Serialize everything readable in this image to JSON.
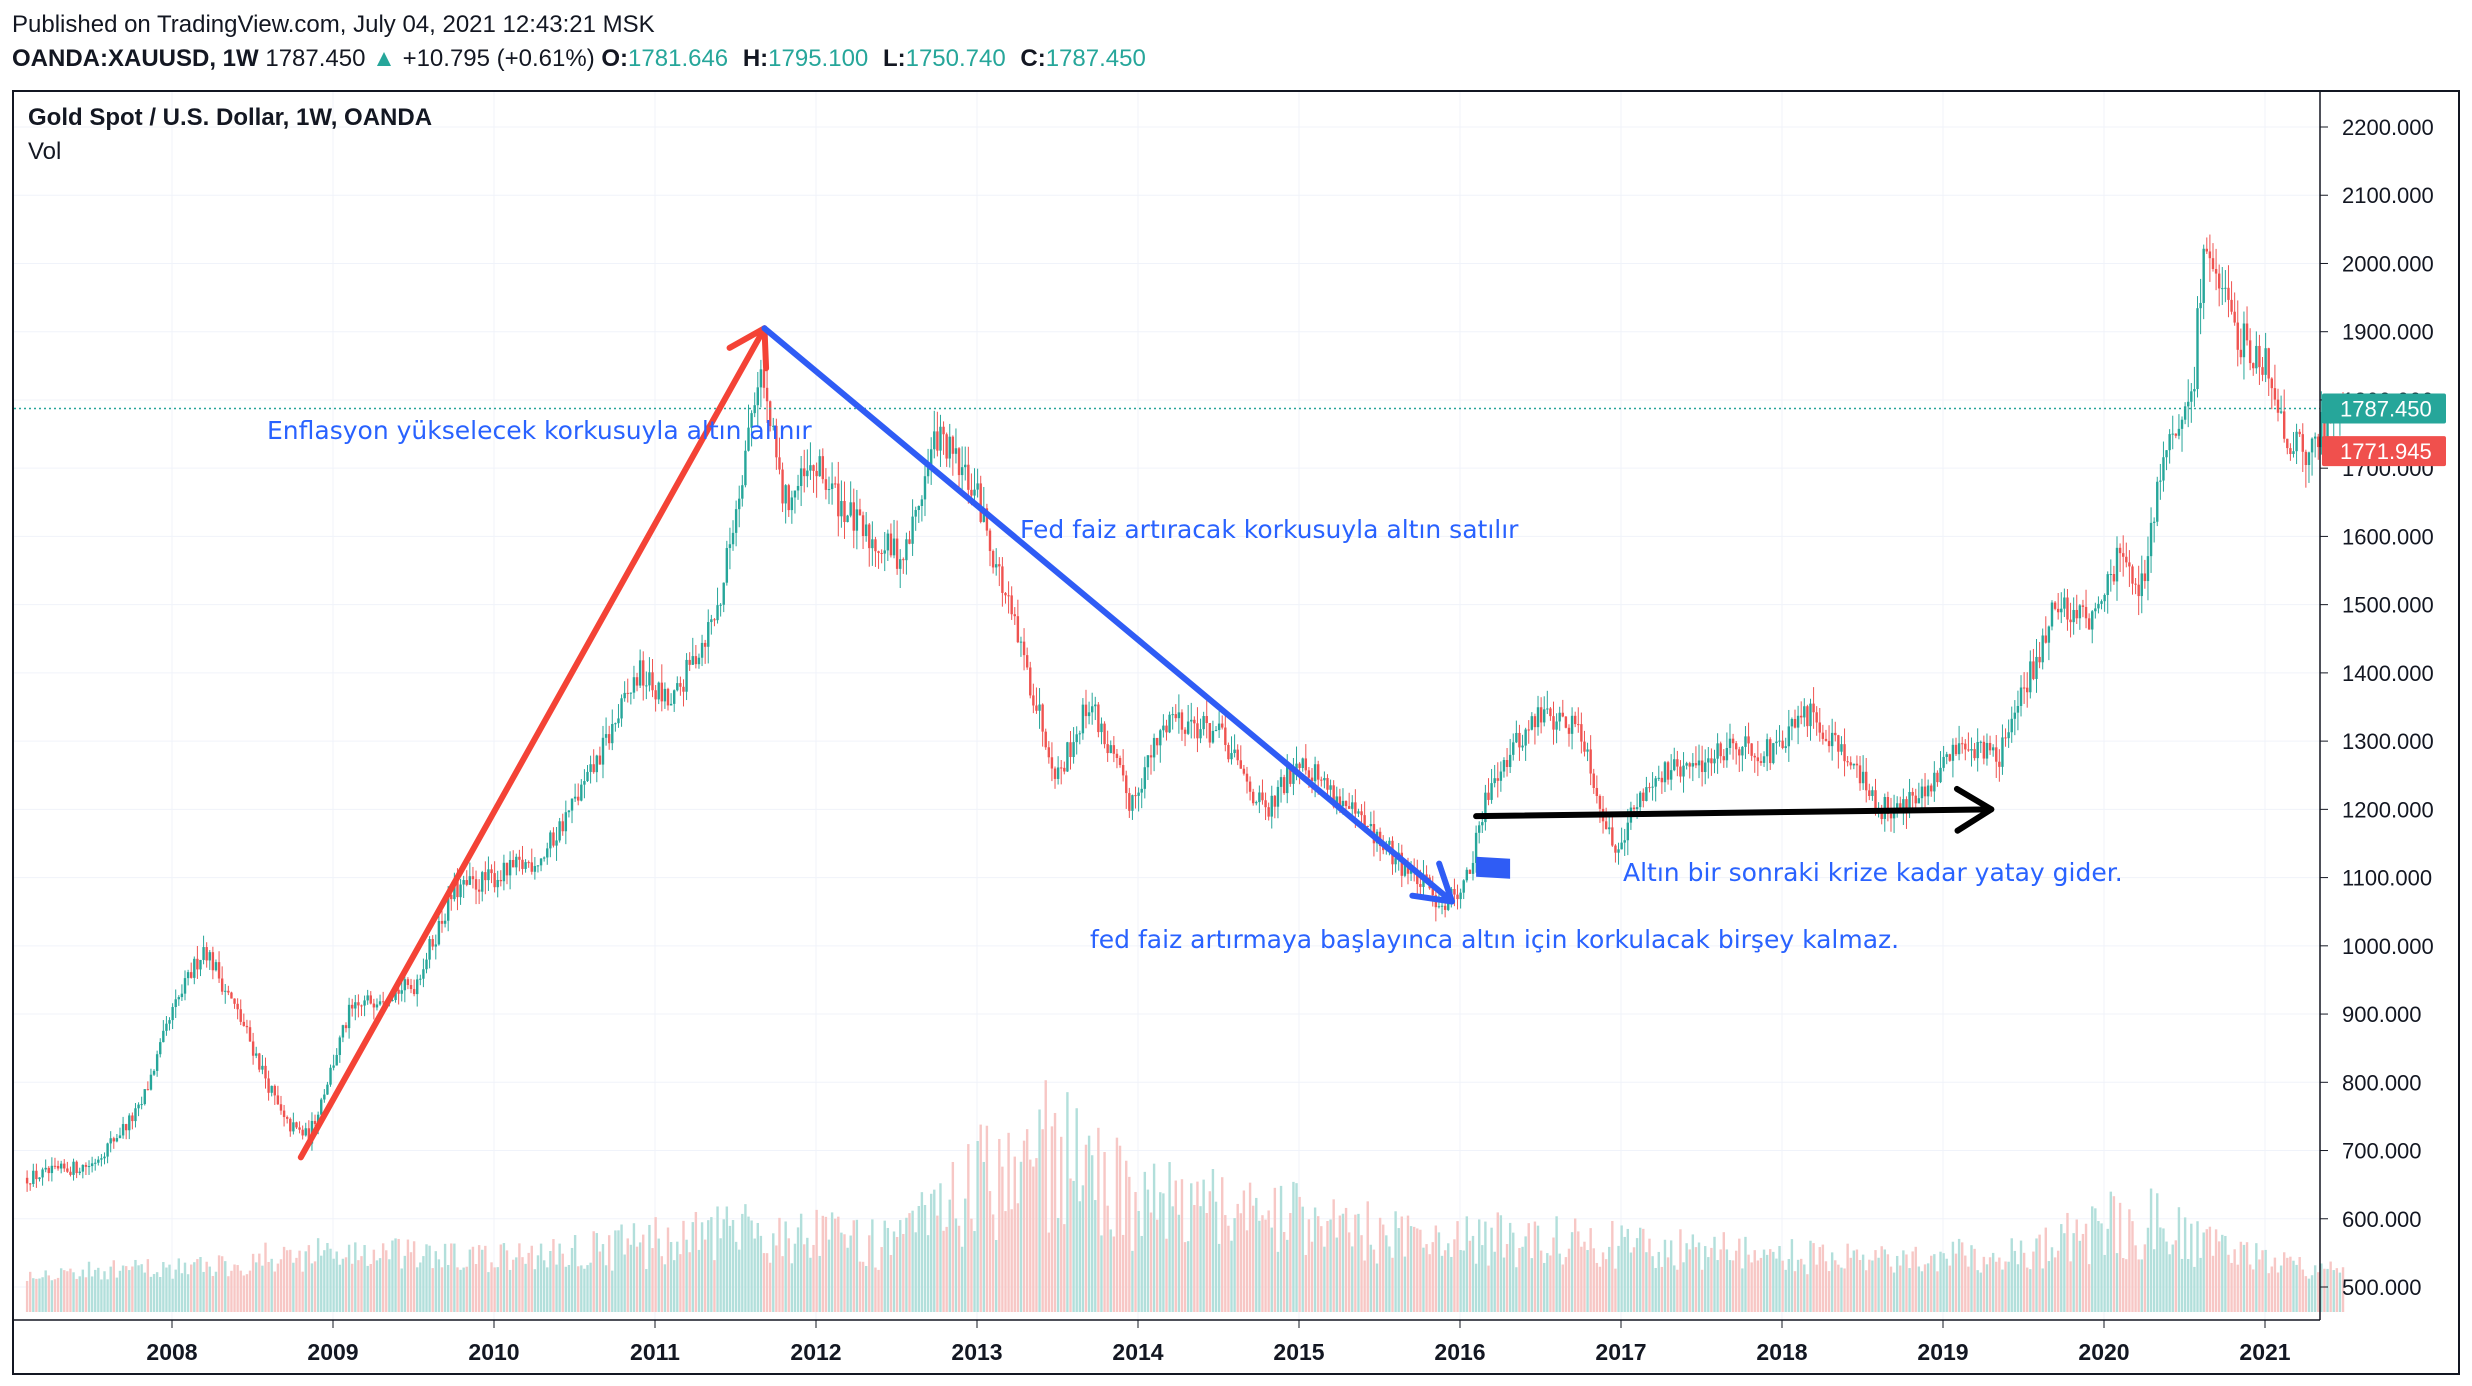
{
  "header": {
    "published": "Published on TradingView.com, July 04, 2021 12:43:21 MSK",
    "symbol": "OANDA:XAUUSD, 1W",
    "last": "1787.450",
    "up_arrow": "▲",
    "change": "+10.795 (+0.61%)",
    "o_label": "O:",
    "o_value": "1781.646",
    "h_label": "H:",
    "h_value": "1795.100",
    "l_label": "L:",
    "l_value": "1750.740",
    "c_label": "C:",
    "c_value": "1787.450"
  },
  "legend": {
    "title": "Gold Spot / U.S. Dollar, 1W, OANDA",
    "vol": "Vol"
  },
  "annotations": {
    "inflation": "Enflasyon yükselecek korkusuyla altın alınır",
    "fed_rise": "Fed faiz artıracak korkusuyla altın satılır",
    "fed_start": "fed faiz artırmaya başlayınca altın için korkulacak birşey kalmaz.",
    "sideways": "Altın bir sonraki krize kadar yatay gider."
  },
  "colors": {
    "up": "#26a69a",
    "down": "#ef5350",
    "up_vol": "#b2dfdb",
    "down_vol": "#f7c7c5",
    "grid": "#f0f3fa",
    "text_blue": "#2962ff",
    "arrow_red": "#f44336",
    "arrow_blue": "#2f5cf5",
    "arrow_black": "#000000",
    "price_line": "#26a69a",
    "last_label_bg": "#26a69a",
    "prev_label_bg": "#f0504d"
  },
  "chart_data": {
    "type": "candlestick",
    "title": "Gold Spot / U.S. Dollar, 1W, OANDA",
    "xlabel": "",
    "ylabel": "",
    "ylim": [
      480,
      2250
    ],
    "grid": true,
    "y_ticks": [
      "500.000",
      "600.000",
      "700.000",
      "800.000",
      "900.000",
      "1000.000",
      "1100.000",
      "1200.000",
      "1300.000",
      "1400.000",
      "1500.000",
      "1600.000",
      "1700.000",
      "1800.000",
      "1900.000",
      "2000.000",
      "2100.000",
      "2200.000"
    ],
    "x_ticks": [
      "2008",
      "2009",
      "2010",
      "2011",
      "2012",
      "2013",
      "2014",
      "2015",
      "2016",
      "2017",
      "2018",
      "2019",
      "2020",
      "2021"
    ],
    "price_path": [
      [
        2007.1,
        660
      ],
      [
        2007.5,
        680
      ],
      [
        2007.8,
        760
      ],
      [
        2008.0,
        900
      ],
      [
        2008.2,
        1000
      ],
      [
        2008.45,
        880
      ],
      [
        2008.7,
        740
      ],
      [
        2008.85,
        720
      ],
      [
        2009.1,
        900
      ],
      [
        2009.3,
        930
      ],
      [
        2009.5,
        940
      ],
      [
        2009.75,
        1080
      ],
      [
        2010.0,
        1100
      ],
      [
        2010.3,
        1130
      ],
      [
        2010.6,
        1250
      ],
      [
        2010.9,
        1400
      ],
      [
        2011.1,
        1350
      ],
      [
        2011.4,
        1500
      ],
      [
        2011.65,
        1850
      ],
      [
        2011.8,
        1650
      ],
      [
        2012.0,
        1700
      ],
      [
        2012.3,
        1600
      ],
      [
        2012.55,
        1570
      ],
      [
        2012.75,
        1750
      ],
      [
        2013.0,
        1660
      ],
      [
        2013.25,
        1450
      ],
      [
        2013.5,
        1250
      ],
      [
        2013.7,
        1360
      ],
      [
        2013.95,
        1210
      ],
      [
        2014.2,
        1340
      ],
      [
        2014.5,
        1310
      ],
      [
        2014.8,
        1190
      ],
      [
        2015.0,
        1280
      ],
      [
        2015.3,
        1200
      ],
      [
        2015.55,
        1140
      ],
      [
        2015.9,
        1060
      ],
      [
        2016.05,
        1100
      ],
      [
        2016.2,
        1250
      ],
      [
        2016.5,
        1340
      ],
      [
        2016.75,
        1320
      ],
      [
        2016.95,
        1140
      ],
      [
        2017.2,
        1250
      ],
      [
        2017.45,
        1260
      ],
      [
        2017.7,
        1300
      ],
      [
        2017.95,
        1280
      ],
      [
        2018.15,
        1340
      ],
      [
        2018.35,
        1300
      ],
      [
        2018.6,
        1200
      ],
      [
        2018.9,
        1220
      ],
      [
        2019.1,
        1300
      ],
      [
        2019.35,
        1280
      ],
      [
        2019.55,
        1400
      ],
      [
        2019.7,
        1500
      ],
      [
        2019.95,
        1480
      ],
      [
        2020.1,
        1580
      ],
      [
        2020.22,
        1500
      ],
      [
        2020.35,
        1700
      ],
      [
        2020.55,
        1800
      ],
      [
        2020.62,
        2040
      ],
      [
        2020.8,
        1900
      ],
      [
        2021.0,
        1860
      ],
      [
        2021.15,
        1740
      ],
      [
        2021.25,
        1720
      ],
      [
        2021.42,
        1780
      ],
      [
        2021.5,
        1787.45
      ]
    ],
    "volume_path": [
      [
        2007.1,
        520
      ],
      [
        2008.2,
        530
      ],
      [
        2008.9,
        550
      ],
      [
        2010.0,
        540
      ],
      [
        2011.6,
        580
      ],
      [
        2012.5,
        560
      ],
      [
        2013.2,
        680
      ],
      [
        2013.5,
        700
      ],
      [
        2014.0,
        620
      ],
      [
        2015.0,
        600
      ],
      [
        2015.8,
        560
      ],
      [
        2016.2,
        570
      ],
      [
        2017.0,
        560
      ],
      [
        2018.5,
        540
      ],
      [
        2019.5,
        550
      ],
      [
        2020.2,
        600
      ],
      [
        2020.6,
        560
      ],
      [
        2021.0,
        540
      ],
      [
        2021.5,
        520
      ]
    ],
    "last_price": 1787.45,
    "last_price_label": "1787.450",
    "prev_close_label": "1771.945",
    "prev_close": 1771.945,
    "drawings": [
      {
        "type": "arrow",
        "color": "red",
        "from": [
          2008.8,
          690
        ],
        "to": [
          2011.68,
          1905
        ]
      },
      {
        "type": "arrow",
        "color": "blue",
        "from": [
          2011.68,
          1905
        ],
        "to": [
          2015.95,
          1065
        ]
      },
      {
        "type": "arrow",
        "color": "black",
        "from": [
          2016.1,
          1190
        ],
        "to": [
          2019.3,
          1200
        ]
      }
    ]
  }
}
